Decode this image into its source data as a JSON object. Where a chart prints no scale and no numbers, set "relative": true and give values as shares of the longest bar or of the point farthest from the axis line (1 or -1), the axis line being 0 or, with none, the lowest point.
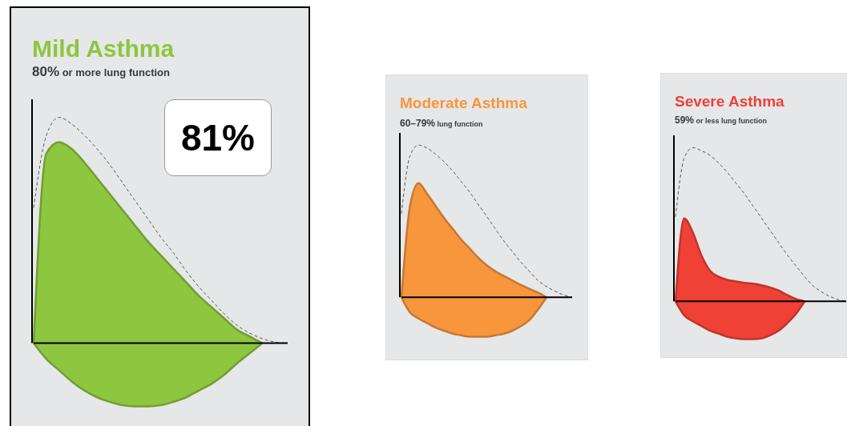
{
  "chart_data": [
    {
      "type": "area",
      "title": "Mild Asthma",
      "subtitle": "80% or more lung function",
      "relative": true,
      "annotations": [
        "81%"
      ],
      "categories": [
        null,
        null,
        null,
        null,
        null,
        null,
        null,
        null,
        null,
        null,
        null,
        null,
        null,
        null,
        null,
        null,
        null,
        null,
        null,
        null,
        null
      ],
      "series": [
        {
          "type": "line",
          "line_style": "dashed",
          "color": "#555555",
          "values": [
            0.6,
            0.92,
            1.0,
            0.97,
            0.92,
            0.86,
            0.79,
            0.71,
            0.63,
            0.55,
            0.47,
            0.4,
            0.32,
            0.25,
            0.19,
            0.13,
            0.08,
            0.045,
            0.02,
            0.005,
            0
          ]
        },
        {
          "color": "#8dc63f",
          "values": [
            0,
            0.84,
            0.89,
            0.86,
            0.8,
            0.73,
            0.66,
            0.59,
            0.52,
            0.45,
            0.39,
            0.33,
            0.27,
            0.21,
            0.16,
            0.11,
            0.06,
            0.03,
            0,
            null,
            null
          ]
        },
        {
          "color": "#8dc63f",
          "values": [
            0,
            -0.07,
            -0.12,
            -0.17,
            -0.21,
            -0.24,
            -0.26,
            -0.275,
            -0.28,
            -0.28,
            -0.275,
            -0.26,
            -0.24,
            -0.21,
            -0.18,
            -0.14,
            -0.09,
            -0.045,
            0,
            null,
            null
          ]
        }
      ]
    },
    {
      "type": "area",
      "title": "Moderate Asthma",
      "subtitle": "60–79% lung function",
      "relative": true,
      "categories": [
        null,
        null,
        null,
        null,
        null,
        null,
        null,
        null,
        null,
        null,
        null,
        null,
        null,
        null,
        null,
        null,
        null,
        null,
        null,
        null,
        null
      ],
      "series": [
        {
          "type": "line",
          "line_style": "dashed",
          "color": "#555555",
          "values": [
            0.55,
            0.93,
            1.0,
            0.98,
            0.94,
            0.89,
            0.83,
            0.76,
            0.69,
            0.61,
            0.53,
            0.45,
            0.37,
            0.3,
            0.23,
            0.17,
            0.11,
            0.07,
            0.04,
            0.015,
            0
          ]
        },
        {
          "color": "#f7963d",
          "values": [
            0,
            0.6,
            0.75,
            0.68,
            0.6,
            0.52,
            0.45,
            0.38,
            0.32,
            0.26,
            0.21,
            0.17,
            0.14,
            0.11,
            0.08,
            0.055,
            0.03,
            0,
            null,
            null,
            null
          ]
        },
        {
          "color": "#f7963d",
          "values": [
            0,
            -0.1,
            -0.14,
            -0.17,
            -0.2,
            -0.22,
            -0.24,
            -0.25,
            -0.26,
            -0.26,
            -0.26,
            -0.25,
            -0.24,
            -0.22,
            -0.19,
            -0.15,
            -0.08,
            0,
            null,
            null,
            null
          ]
        }
      ]
    },
    {
      "type": "area",
      "title": "Severe Asthma",
      "subtitle": "59% or less lung function",
      "relative": true,
      "categories": [
        null,
        null,
        null,
        null,
        null,
        null,
        null,
        null,
        null,
        null,
        null,
        null,
        null,
        null,
        null,
        null,
        null,
        null,
        null,
        null,
        null
      ],
      "series": [
        {
          "type": "line",
          "line_style": "dashed",
          "color": "#555555",
          "values": [
            0.55,
            0.93,
            1.0,
            0.98,
            0.95,
            0.9,
            0.84,
            0.77,
            0.7,
            0.62,
            0.54,
            0.46,
            0.38,
            0.3,
            0.23,
            0.16,
            0.1,
            0.06,
            0.03,
            0.01,
            0
          ]
        },
        {
          "color": "#ef4136",
          "values": [
            0,
            0.54,
            0.45,
            0.3,
            0.2,
            0.16,
            0.14,
            0.13,
            0.12,
            0.115,
            0.105,
            0.09,
            0.07,
            0.04,
            0.015,
            0,
            null,
            null,
            null,
            null,
            null
          ]
        },
        {
          "color": "#ef4136",
          "values": [
            0,
            -0.09,
            -0.13,
            -0.16,
            -0.19,
            -0.21,
            -0.23,
            -0.24,
            -0.245,
            -0.245,
            -0.24,
            -0.22,
            -0.19,
            -0.14,
            -0.08,
            0,
            null,
            null,
            null,
            null,
            null
          ]
        }
      ]
    }
  ]
}
